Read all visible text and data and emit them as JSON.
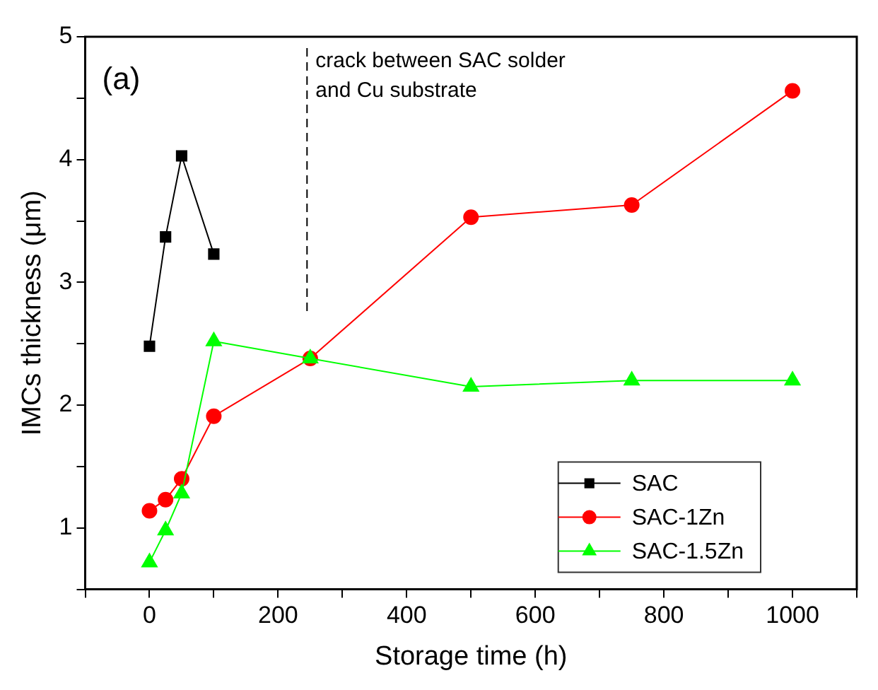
{
  "chart_data": {
    "type": "line",
    "xlabel": "Storage time (h)",
    "ylabel": "IMCs thickness (μm)",
    "xlim": [
      -100,
      1100
    ],
    "ylim": [
      0.5,
      5
    ],
    "xticks": [
      {
        "value": -100,
        "label": null
      },
      0,
      {
        "value": 100,
        "label": null
      },
      200,
      {
        "value": 300,
        "label": null
      },
      400,
      {
        "value": 500,
        "label": null
      },
      600,
      {
        "value": 700,
        "label": null
      },
      800,
      {
        "value": 900,
        "label": null
      },
      1000,
      {
        "value": 1100,
        "label": null
      }
    ],
    "yticks": [
      {
        "value": 0.5,
        "label": null
      },
      1,
      {
        "value": 1.5,
        "label": null
      },
      2,
      {
        "value": 2.5,
        "label": null
      },
      3,
      {
        "value": 3.5,
        "label": null
      },
      4,
      {
        "value": 4.5,
        "label": null
      },
      5
    ],
    "series": [
      {
        "name": "SAC",
        "color": "#000000",
        "marker": "square",
        "x": [
          0,
          25,
          50,
          100
        ],
        "values": [
          2.48,
          3.37,
          4.03,
          3.23
        ]
      },
      {
        "name": "SAC-1Zn",
        "color": "#ff0000",
        "marker": "circle",
        "x": [
          0,
          25,
          50,
          100,
          250,
          500,
          750,
          1000
        ],
        "values": [
          1.14,
          1.23,
          1.4,
          1.91,
          2.38,
          3.53,
          3.63,
          4.56
        ]
      },
      {
        "name": "SAC-1.5Zn",
        "color": "#00ff00",
        "marker": "triangle",
        "x": [
          0,
          25,
          50,
          100,
          250,
          500,
          750,
          1000
        ],
        "values": [
          0.72,
          0.98,
          1.28,
          2.52,
          2.38,
          2.15,
          2.2,
          2.2
        ]
      }
    ],
    "ref_lines": [
      {
        "axis": "x",
        "value": 245,
        "label": "crack between SAC solder and Cu substrate",
        "color": "#000000",
        "line_style": "dashed"
      }
    ],
    "annotations": [
      "(a)"
    ],
    "legend": "bottom right",
    "grid": false,
    "line_style": "solid"
  }
}
